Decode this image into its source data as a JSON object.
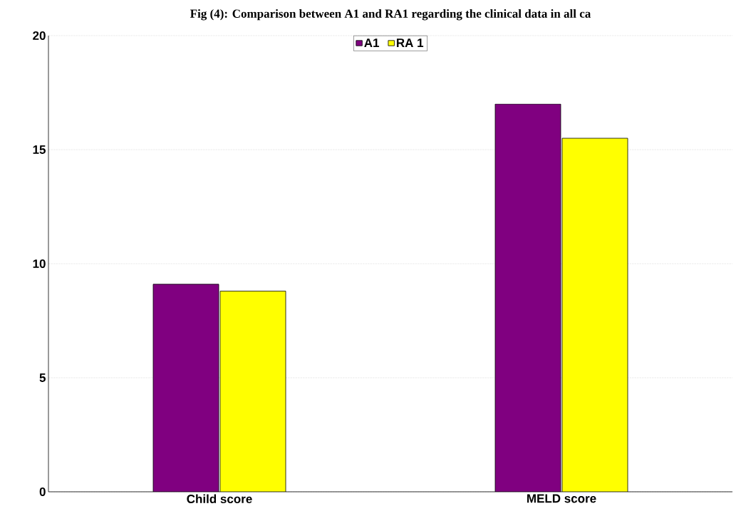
{
  "chart_data": {
    "type": "bar",
    "title": "Fig (4): Comparison between A1 and RA1 regarding the clinical data in all ca",
    "categories": [
      "Child score",
      "MELD score"
    ],
    "series": [
      {
        "name": "A1",
        "color": "#800080",
        "values": [
          9.1,
          17.0
        ]
      },
      {
        "name": "RA 1",
        "color": "#ffff00",
        "values": [
          8.8,
          15.5
        ]
      }
    ],
    "ylim": [
      0,
      20
    ],
    "yticks": [
      0,
      5,
      10,
      15,
      20
    ],
    "grid": "y",
    "legend": "top"
  }
}
